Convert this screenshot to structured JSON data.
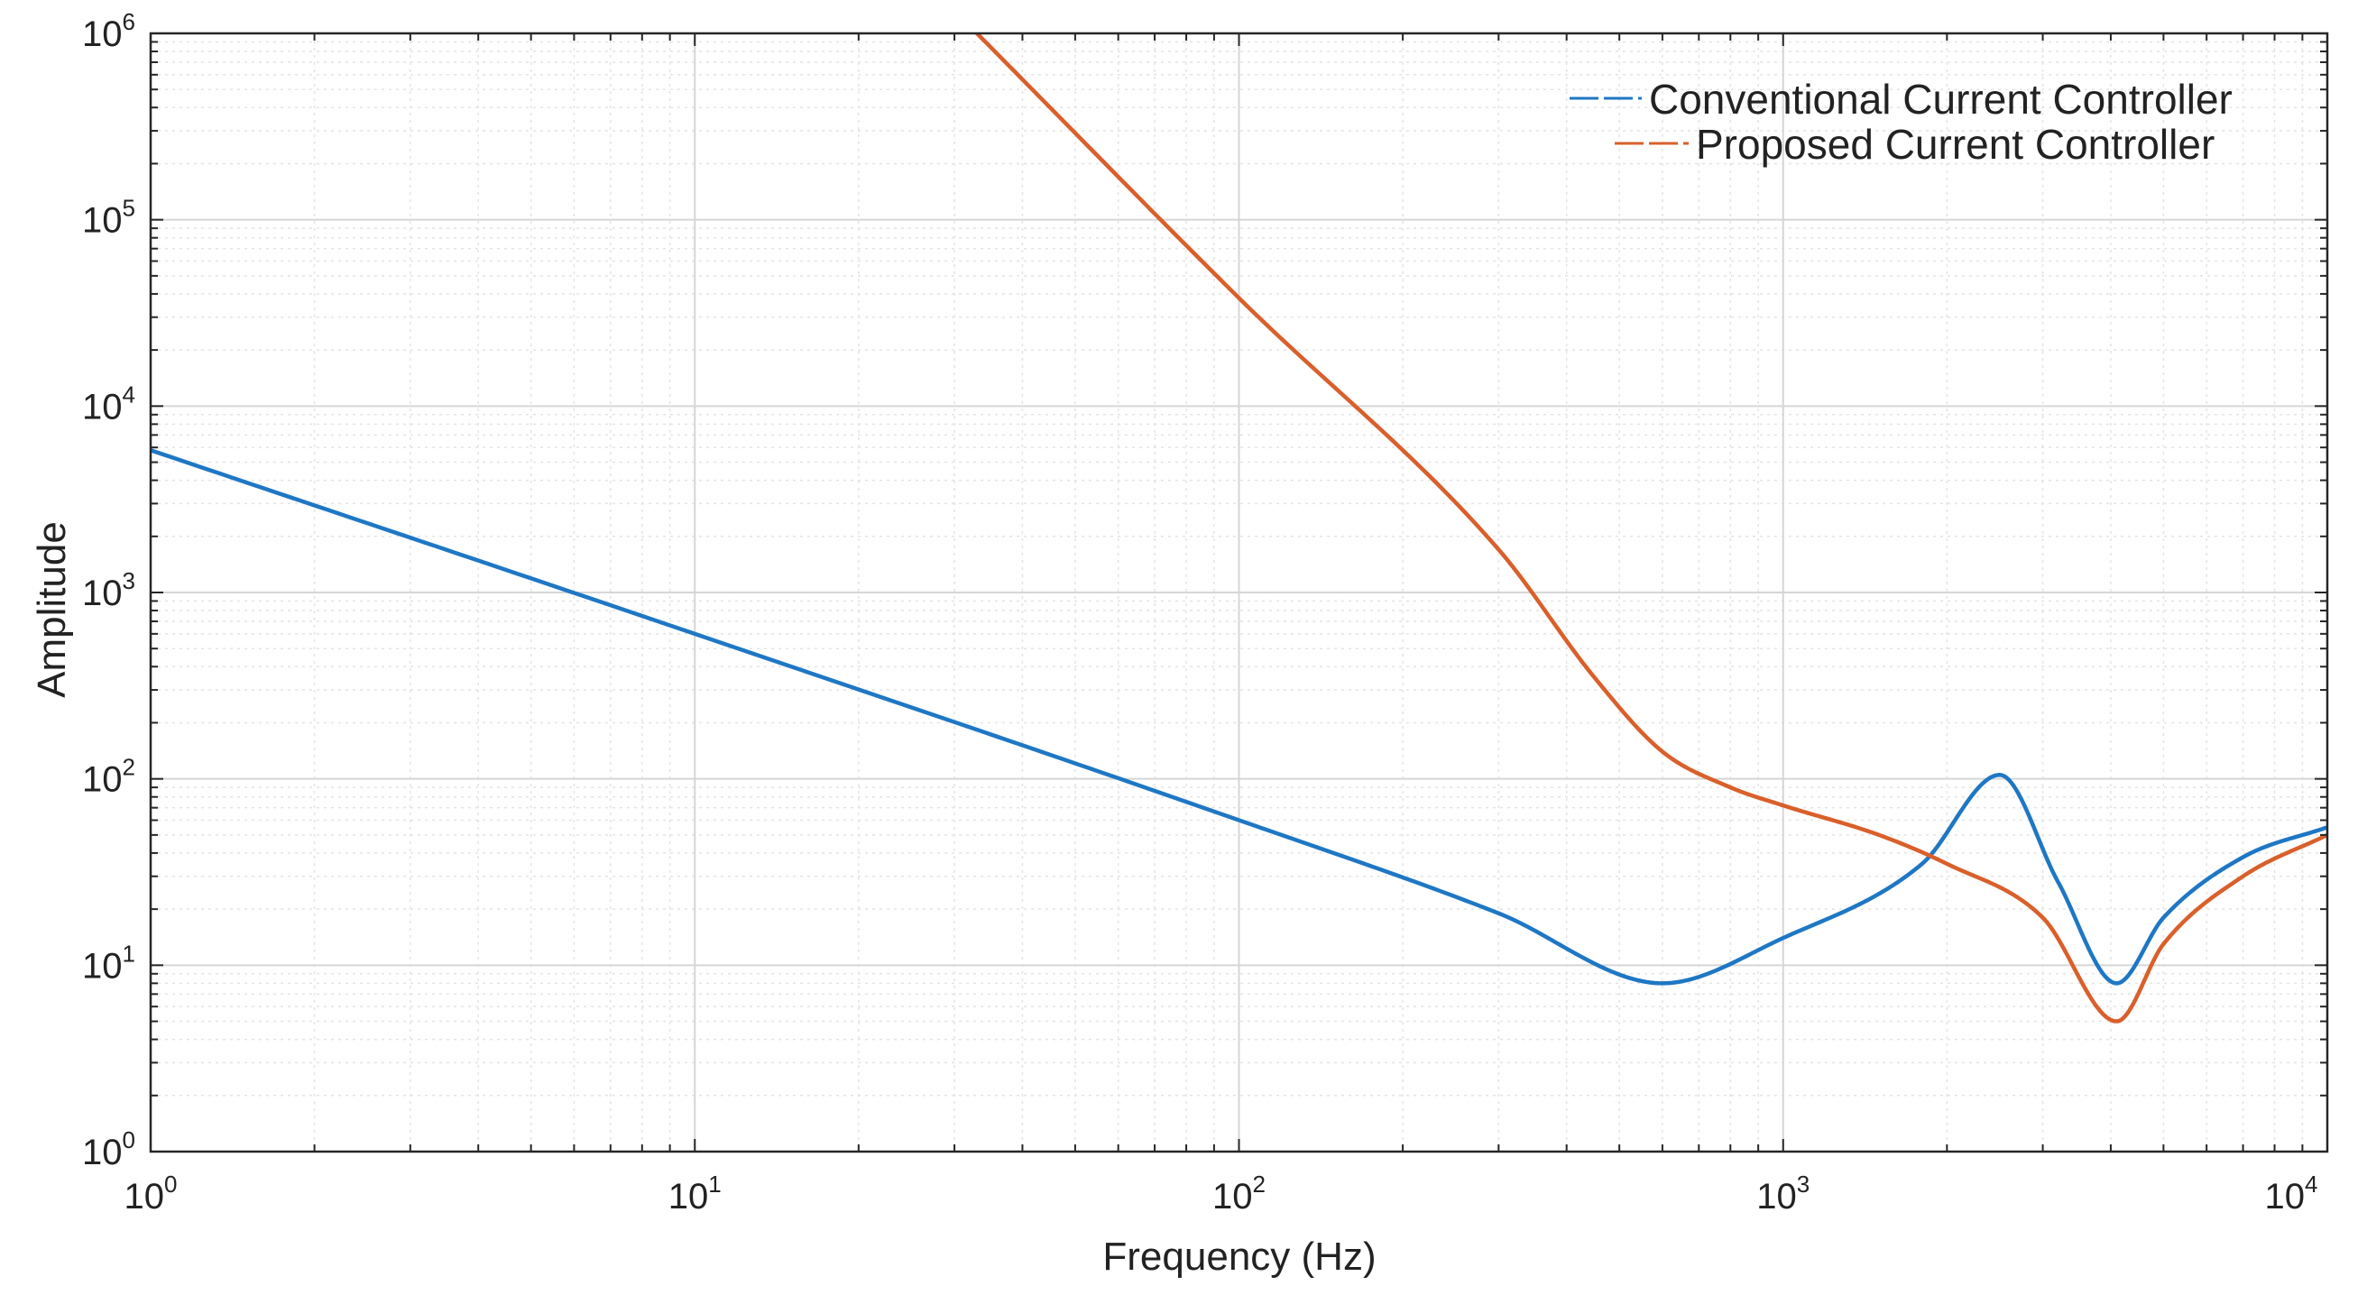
{
  "chart_data": {
    "type": "line",
    "title": "",
    "xlabel": "Frequency (Hz)",
    "ylabel": "Amplitude",
    "xscale": "log",
    "yscale": "log",
    "xlim": [
      1,
      10000
    ],
    "ylim": [
      1,
      1000000
    ],
    "grid": true,
    "minor_grid": true,
    "legend_position": "top-right",
    "x_ticks": [
      {
        "base": "10",
        "exp": "0",
        "value": 1
      },
      {
        "base": "10",
        "exp": "1",
        "value": 10
      },
      {
        "base": "10",
        "exp": "2",
        "value": 100
      },
      {
        "base": "10",
        "exp": "3",
        "value": 1000
      },
      {
        "base": "10",
        "exp": "4",
        "value": 10000
      }
    ],
    "y_ticks": [
      {
        "base": "10",
        "exp": "0",
        "value": 1
      },
      {
        "base": "10",
        "exp": "1",
        "value": 10
      },
      {
        "base": "10",
        "exp": "2",
        "value": 100
      },
      {
        "base": "10",
        "exp": "3",
        "value": 1000
      },
      {
        "base": "10",
        "exp": "4",
        "value": 10000
      },
      {
        "base": "10",
        "exp": "5",
        "value": 100000
      },
      {
        "base": "10",
        "exp": "6",
        "value": 1000000
      }
    ],
    "series": [
      {
        "name": "Conventional Current Controller",
        "color": "#1f77c4",
        "x": [
          1,
          10,
          100,
          300,
          600,
          1000,
          1800,
          2500,
          3200,
          4100,
          5000,
          7000,
          10000
        ],
        "y": [
          5800,
          600,
          60,
          19,
          8,
          14,
          35,
          105,
          28,
          8,
          18,
          38,
          55
        ]
      },
      {
        "name": "Proposed Current Controller",
        "color": "#d95f2b",
        "x": [
          33,
          100,
          300,
          450,
          600,
          800,
          1000,
          1500,
          2000,
          3000,
          4100,
          5000,
          7000,
          10000
        ],
        "y": [
          1000000,
          38000,
          1700,
          350,
          140,
          90,
          72,
          50,
          35,
          18,
          5,
          13,
          30,
          50
        ]
      }
    ]
  }
}
